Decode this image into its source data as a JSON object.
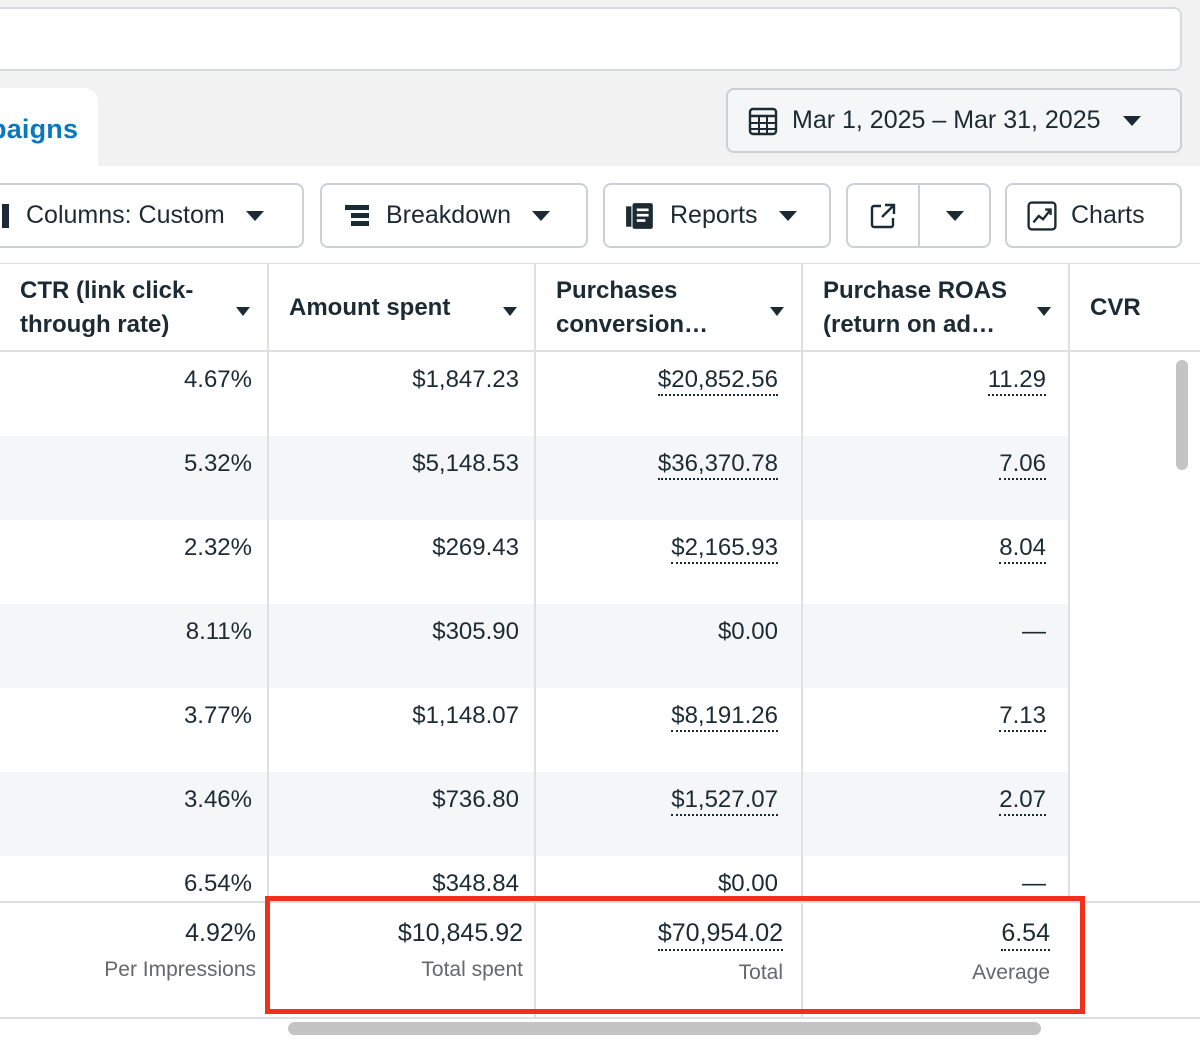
{
  "tabs": {
    "campaigns": "paigns"
  },
  "date_range": {
    "label": "Mar 1, 2025 – Mar 31, 2025",
    "icon": "calendar-icon"
  },
  "toolbar": {
    "columns_label": "Columns: Custom",
    "breakdown_label": "Breakdown",
    "reports_label": "Reports",
    "charts_label": "Charts"
  },
  "table": {
    "headers": {
      "ctr": [
        "CTR (link click-",
        "through rate)"
      ],
      "amount": "Amount spent",
      "purchases": [
        "Purchases",
        "conversion…"
      ],
      "roas": [
        "Purchase ROAS",
        "(return on ad…"
      ],
      "cvr": "CVR"
    },
    "rows": [
      {
        "ctr": "4.67%",
        "amount": "$1,847.23",
        "purchases": "$20,852.56",
        "roas": "11.29"
      },
      {
        "ctr": "5.32%",
        "amount": "$5,148.53",
        "purchases": "$36,370.78",
        "roas": "7.06"
      },
      {
        "ctr": "2.32%",
        "amount": "$269.43",
        "purchases": "$2,165.93",
        "roas": "8.04"
      },
      {
        "ctr": "8.11%",
        "amount": "$305.90",
        "purchases": "$0.00",
        "roas": "—"
      },
      {
        "ctr": "3.77%",
        "amount": "$1,148.07",
        "purchases": "$8,191.26",
        "roas": "7.13"
      },
      {
        "ctr": "3.46%",
        "amount": "$736.80",
        "purchases": "$1,527.07",
        "roas": "2.07"
      },
      {
        "ctr": "6.54%",
        "amount": "$348.84",
        "purchases": "$0.00",
        "roas": "—"
      }
    ],
    "totals": {
      "ctr": {
        "value": "4.92%",
        "label": "Per Impressions"
      },
      "amount": {
        "value": "$10,845.92",
        "label": "Total spent"
      },
      "purchases": {
        "value": "$70,954.02",
        "label": "Total"
      },
      "roas": {
        "value": "6.54",
        "label": "Average"
      }
    }
  },
  "colors": {
    "accent": "#0a78be",
    "highlight": "#f0301a",
    "row_alt": "#f5f6f7"
  }
}
